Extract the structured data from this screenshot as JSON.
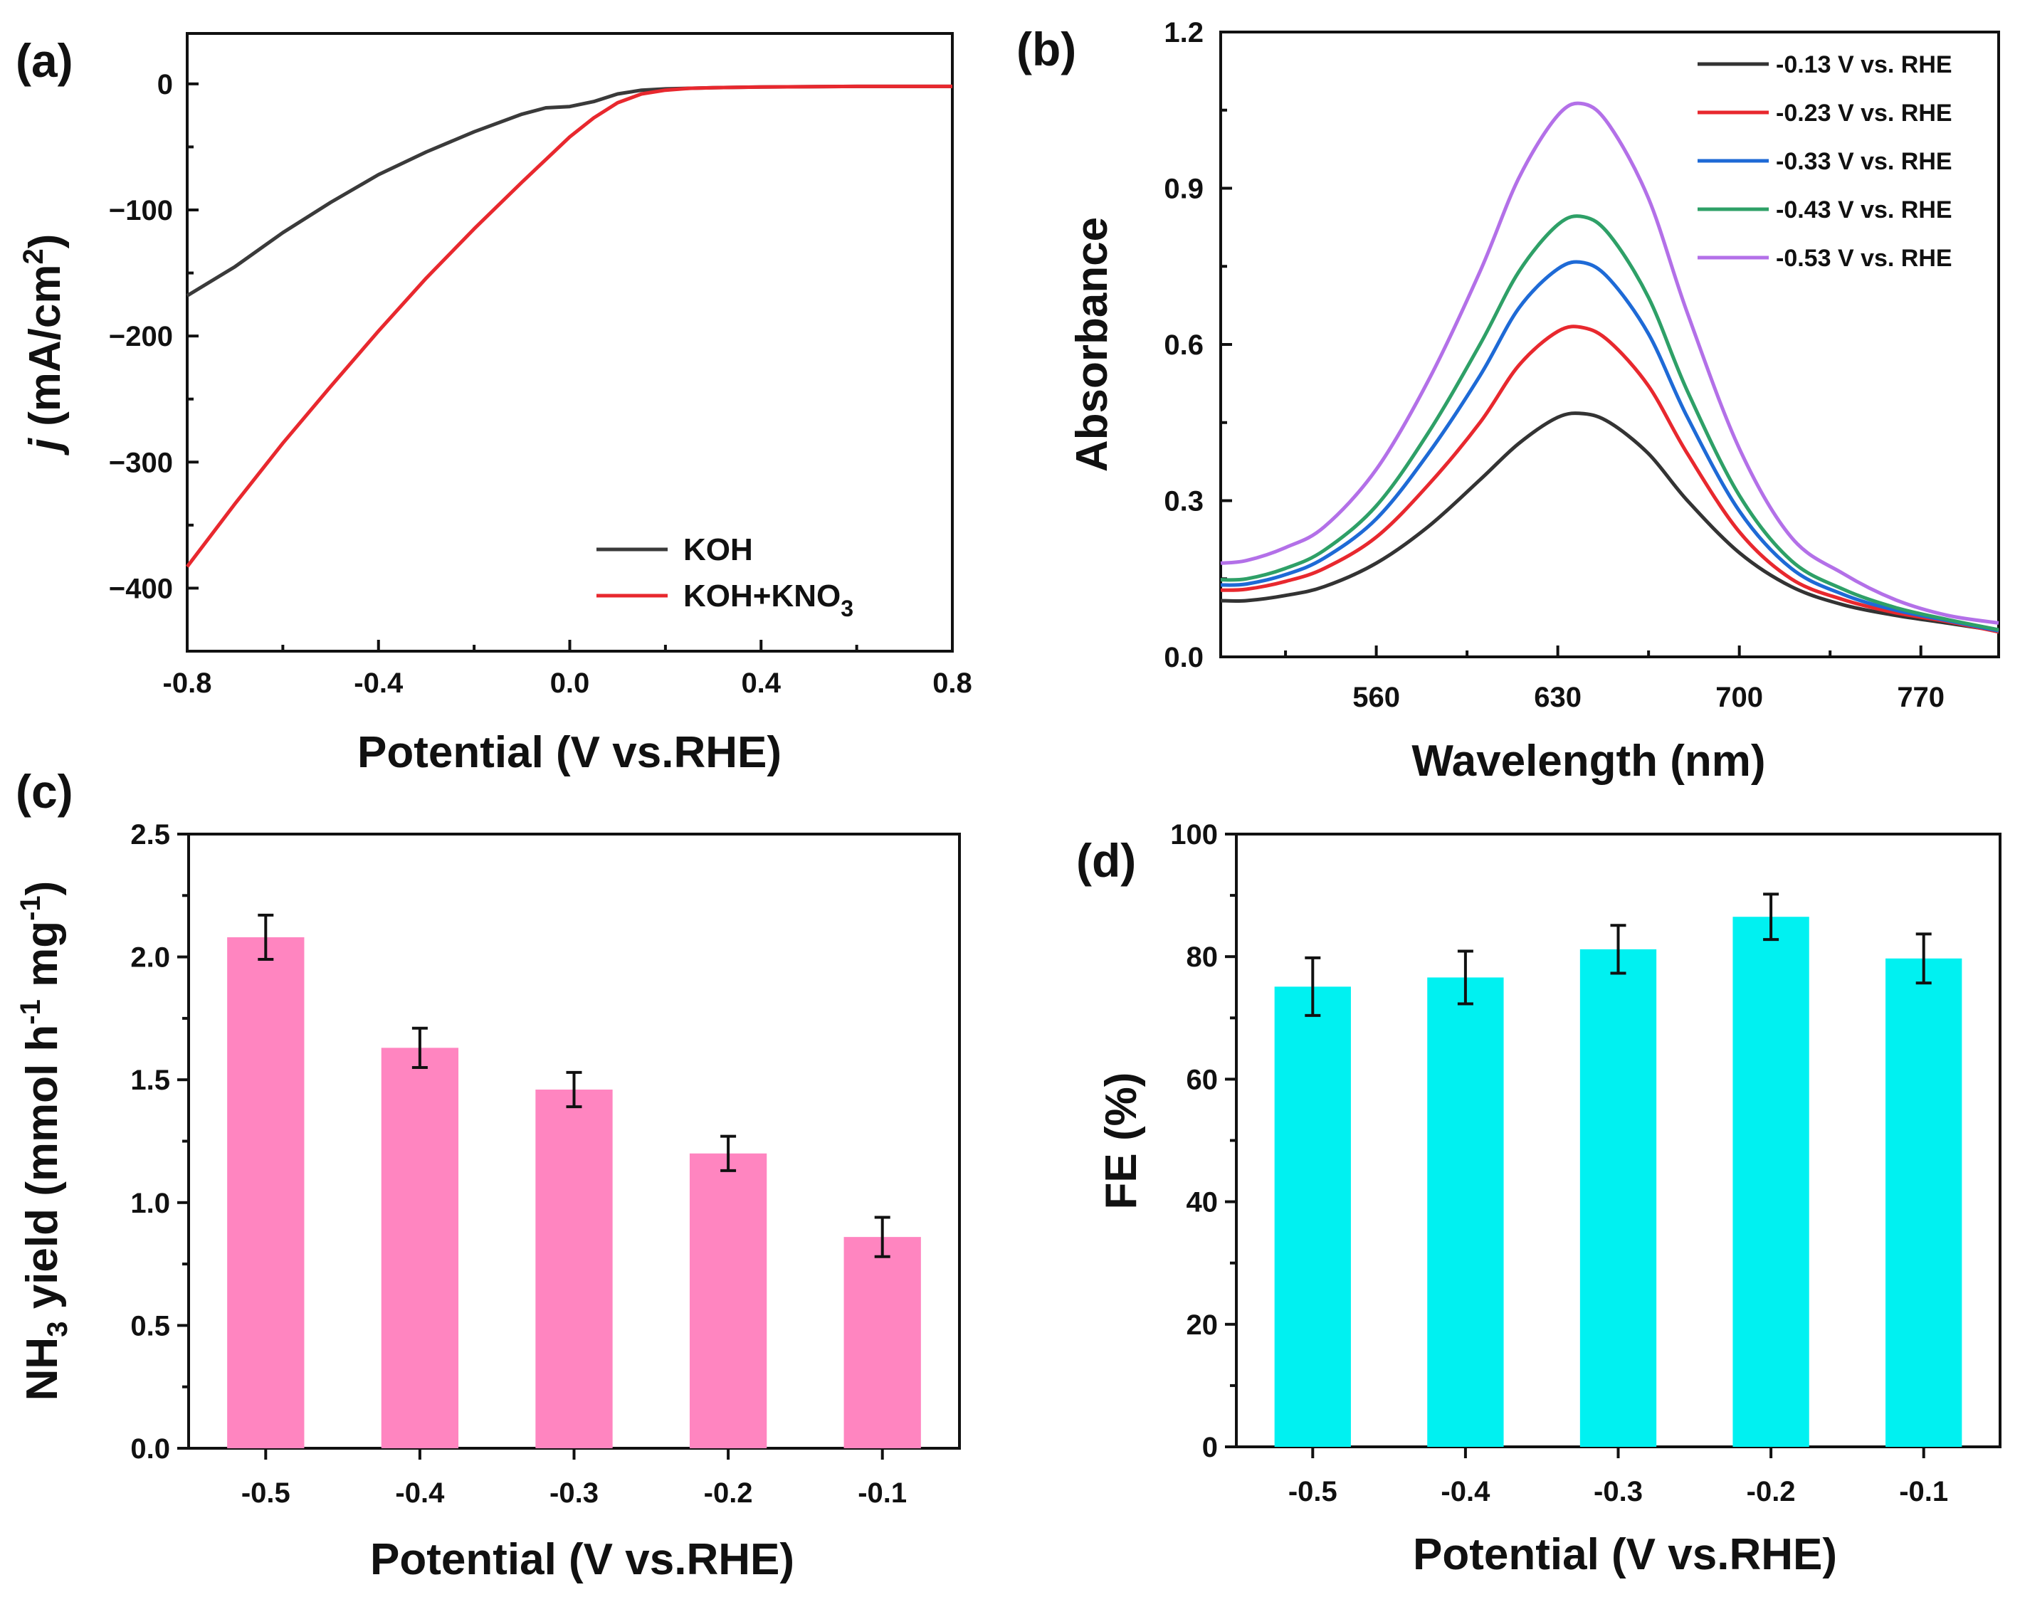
{
  "colors": {
    "axis": "#111111",
    "koh": "#3a3a3a",
    "koh_kno3": "#e8282e",
    "s013": "#333333",
    "s023": "#e8282e",
    "s033": "#1e6ad6",
    "s043": "#2ea067",
    "s053": "#b370e8",
    "bar_c": "#ff85c0",
    "bar_d": "#00f1f1"
  },
  "chart_data": [
    {
      "panel": "(a)",
      "type": "line",
      "xlabel": "Potential (V vs.RHE)",
      "ylabel": {
        "symbol": "j",
        "unit": " (mA/cm",
        "sup": "2",
        "close": ")"
      },
      "xlim": [
        -0.8,
        0.8
      ],
      "ylim": [
        -450,
        40
      ],
      "xticks": [
        "-0.8",
        "-0.4",
        "0.0",
        "0.4",
        "0.8"
      ],
      "yticks": [
        "0",
        "−100",
        "−200",
        "−300",
        "−400"
      ],
      "legend": [
        {
          "label": "KOH",
          "sub": "",
          "color_key": "koh"
        },
        {
          "label": "KOH+KNO",
          "sub": "3",
          "color_key": "koh_kno3"
        }
      ],
      "series": [
        {
          "name": "KOH",
          "x": [
            -0.8,
            -0.7,
            -0.6,
            -0.5,
            -0.4,
            -0.3,
            -0.2,
            -0.1,
            -0.05,
            0.0,
            0.05,
            0.1,
            0.15,
            0.2,
            0.3,
            0.4,
            0.6,
            0.8
          ],
          "y": [
            -168,
            -145,
            -118,
            -94,
            -72,
            -54,
            -38,
            -24,
            -19,
            -18,
            -14,
            -8,
            -5,
            -4,
            -3,
            -2.5,
            -2,
            -2
          ]
        },
        {
          "name": "KOH+KNO3",
          "x": [
            -0.8,
            -0.7,
            -0.6,
            -0.5,
            -0.4,
            -0.3,
            -0.2,
            -0.1,
            0.0,
            0.05,
            0.1,
            0.15,
            0.2,
            0.25,
            0.3,
            0.4,
            0.6,
            0.8
          ],
          "y": [
            -383,
            -333,
            -285,
            -240,
            -196,
            -154,
            -115,
            -78,
            -42,
            -27,
            -15,
            -8,
            -5,
            -3.5,
            -3,
            -2.5,
            -2,
            -2
          ]
        }
      ]
    },
    {
      "panel": "(b)",
      "type": "line",
      "xlabel": "Wavelength (nm)",
      "ylabel": "Absorbance",
      "xlim": [
        500,
        800
      ],
      "ylim": [
        0,
        1.2
      ],
      "xticks": [
        "560",
        "630",
        "700",
        "770"
      ],
      "xtick_values": [
        560,
        630,
        700,
        770
      ],
      "yticks": [
        "0.0",
        "0.3",
        "0.6",
        "0.9",
        "1.2"
      ],
      "ytick_values": [
        0,
        0.3,
        0.6,
        0.9,
        1.2
      ],
      "x": [
        500,
        510,
        525,
        540,
        560,
        580,
        600,
        615,
        630,
        640,
        650,
        665,
        680,
        700,
        720,
        740,
        760,
        780,
        800
      ],
      "series": [
        {
          "name": "-0.13 V vs. RHE",
          "color_key": "s013",
          "y": [
            0.108,
            0.108,
            0.118,
            0.135,
            0.18,
            0.25,
            0.34,
            0.41,
            0.46,
            0.467,
            0.45,
            0.39,
            0.3,
            0.2,
            0.135,
            0.1,
            0.08,
            0.065,
            0.05
          ]
        },
        {
          "name": "-0.23 V vs. RHE",
          "color_key": "s023",
          "y": [
            0.128,
            0.13,
            0.145,
            0.17,
            0.23,
            0.33,
            0.45,
            0.56,
            0.625,
            0.632,
            0.605,
            0.52,
            0.39,
            0.24,
            0.15,
            0.11,
            0.085,
            0.068,
            0.048
          ]
        },
        {
          "name": "-0.33 V vs. RHE",
          "color_key": "s033",
          "y": [
            0.138,
            0.14,
            0.158,
            0.19,
            0.265,
            0.39,
            0.54,
            0.67,
            0.745,
            0.757,
            0.725,
            0.62,
            0.46,
            0.28,
            0.17,
            0.12,
            0.09,
            0.07,
            0.05
          ]
        },
        {
          "name": "-0.43 V vs. RHE",
          "color_key": "s043",
          "y": [
            0.148,
            0.15,
            0.17,
            0.205,
            0.29,
            0.43,
            0.6,
            0.74,
            0.83,
            0.845,
            0.81,
            0.69,
            0.51,
            0.31,
            0.185,
            0.13,
            0.095,
            0.072,
            0.052
          ]
        },
        {
          "name": "-0.53 V vs. RHE",
          "color_key": "s053",
          "y": [
            0.18,
            0.185,
            0.21,
            0.25,
            0.36,
            0.53,
            0.74,
            0.92,
            1.04,
            1.062,
            1.02,
            0.88,
            0.66,
            0.4,
            0.23,
            0.16,
            0.11,
            0.08,
            0.065
          ]
        }
      ]
    },
    {
      "panel": "(c)",
      "type": "bar",
      "xlabel": "Potential (V vs.RHE)",
      "ylabel": {
        "pre": "NH",
        "sub": "3",
        "mid": " yield (mmol h",
        "sup1": "-1",
        "mid2": " mg",
        "sup2": "-1",
        "close": ")"
      },
      "categories": [
        "-0.5",
        "-0.4",
        "-0.3",
        "-0.2",
        "-0.1"
      ],
      "values": [
        2.08,
        1.63,
        1.46,
        1.2,
        0.86
      ],
      "errors": [
        0.09,
        0.08,
        0.07,
        0.07,
        0.08
      ],
      "ylim": [
        0,
        2.5
      ],
      "yticks": [
        "0.0",
        "0.5",
        "1.0",
        "1.5",
        "2.0",
        "2.5"
      ],
      "ytick_values": [
        0,
        0.5,
        1.0,
        1.5,
        2.0,
        2.5
      ]
    },
    {
      "panel": "(d)",
      "type": "bar",
      "xlabel": "Potential (V vs.RHE)",
      "ylabel": "FE (%)",
      "categories": [
        "-0.5",
        "-0.4",
        "-0.3",
        "-0.2",
        "-0.1"
      ],
      "values": [
        75.1,
        76.6,
        81.2,
        86.5,
        79.7
      ],
      "errors": [
        4.7,
        4.3,
        3.9,
        3.7,
        4.0
      ],
      "ylim": [
        0,
        100
      ],
      "yticks": [
        "0",
        "20",
        "40",
        "60",
        "80",
        "100"
      ],
      "ytick_values": [
        0,
        20,
        40,
        60,
        80,
        100
      ]
    }
  ]
}
